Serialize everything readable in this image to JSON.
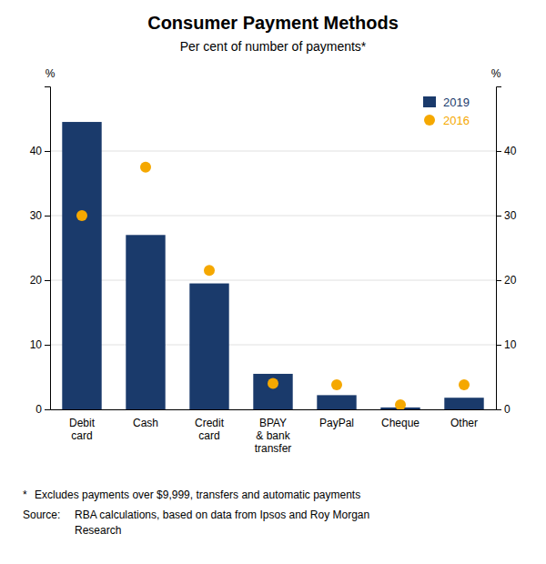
{
  "chart_data": {
    "type": "bar",
    "title": "Consumer Payment Methods",
    "subtitle": "Per cent of number of payments*",
    "categories": [
      "Debit\ncard",
      "Cash",
      "Credit\ncard",
      "BPAY\n& bank\ntransfer",
      "PayPal",
      "Cheque",
      "Other"
    ],
    "series": [
      {
        "name": "2019",
        "type": "bar",
        "color": "#1a3a6b",
        "values": [
          44.5,
          27.0,
          19.5,
          5.5,
          2.2,
          0.3,
          1.8
        ]
      },
      {
        "name": "2016",
        "type": "scatter",
        "color": "#f5a800",
        "values": [
          30.0,
          37.5,
          21.5,
          4.0,
          3.8,
          0.7,
          3.8
        ]
      }
    ],
    "ylim": [
      0,
      50
    ],
    "yticks": [
      0,
      10,
      20,
      30,
      40
    ],
    "y2lim": [
      0,
      50
    ],
    "y2ticks": [
      0,
      10,
      20,
      30,
      40
    ],
    "ylabel": "%",
    "y2label": "%",
    "grid": true,
    "legend": "upper right",
    "annotations": [
      "*",
      "Excludes payments over $9,999, transfers and automatic payments",
      "Source:",
      "RBA calculations, based on data from Ipsos and Roy Morgan",
      "Research"
    ]
  }
}
